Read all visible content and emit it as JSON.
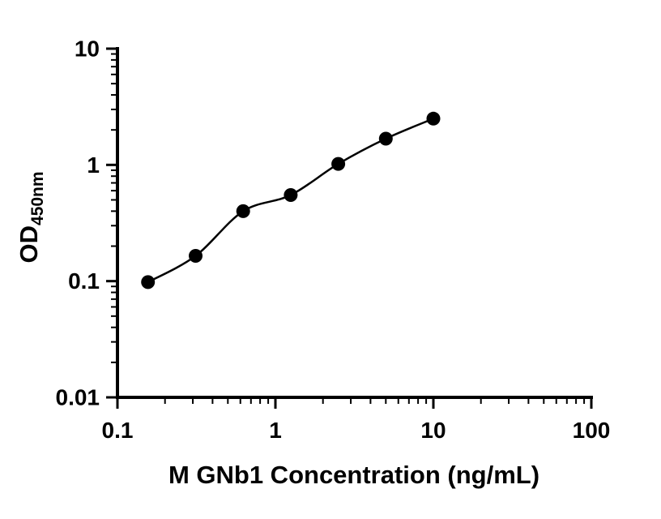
{
  "page": {
    "background": "#ffffff",
    "foreground": "#000000"
  },
  "chart_data": {
    "type": "scatter",
    "title": "",
    "xlabel": "M GNb1 Concentration (ng/mL)",
    "ylabel": "OD450nm",
    "ylabel_main": "OD",
    "ylabel_sub": "450nm",
    "x_scale": "log",
    "y_scale": "log",
    "xlim": [
      0.1,
      100
    ],
    "ylim": [
      0.01,
      10
    ],
    "x_ticks": [
      0.1,
      1,
      10,
      100
    ],
    "x_tick_labels": [
      "0.1",
      "1",
      "10",
      "100"
    ],
    "y_ticks": [
      0.01,
      0.1,
      1,
      10
    ],
    "y_tick_labels": [
      "0.01",
      "0.1",
      "1",
      "10"
    ],
    "grid": false,
    "legend": "none",
    "series": [
      {
        "x": [
          0.156,
          0.3125,
          0.625,
          1.25,
          2.5,
          5,
          10
        ],
        "y": [
          0.098,
          0.165,
          0.4,
          0.55,
          1.02,
          1.68,
          2.5
        ],
        "marker": "circle",
        "line": "smooth",
        "color": "#000000"
      }
    ]
  }
}
